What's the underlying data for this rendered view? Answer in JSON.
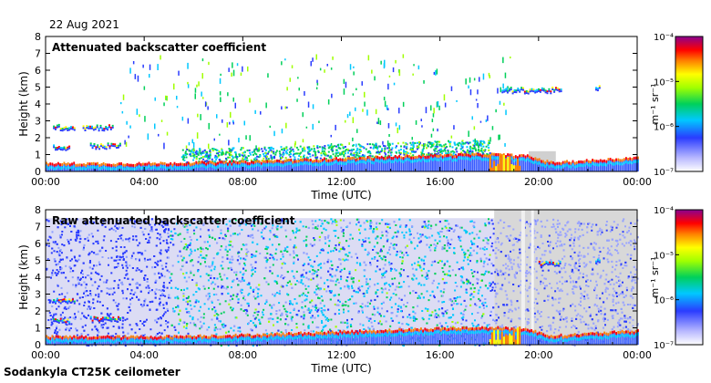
{
  "date": "22 Aug 2021",
  "footer": "Sodankyla CT25K ceilometer",
  "chart_data": [
    {
      "type": "heatmap",
      "title": "Attenuated backscatter coefficient",
      "xlabel": "Time (UTC)",
      "ylabel": "Height (km)",
      "x_ticks": [
        "00:00",
        "04:00",
        "08:00",
        "12:00",
        "16:00",
        "20:00",
        "00:00"
      ],
      "y_ticks": [
        "0",
        "1",
        "2",
        "3",
        "4",
        "5",
        "6",
        "7",
        "8"
      ],
      "xlim_hours": [
        0,
        24
      ],
      "ylim_km": [
        0,
        8
      ],
      "colorbar": {
        "scale": "log",
        "range": [
          1e-07,
          0.0001
        ],
        "tick_labels": [
          "10⁻⁷",
          "10⁻⁶",
          "10⁻⁵",
          "10⁻⁴"
        ],
        "unit": "m⁻¹ sr⁻¹"
      },
      "features": {
        "boundary_layer_top_km": [
          [
            0,
            0.45
          ],
          [
            4,
            0.45
          ],
          [
            8,
            0.55
          ],
          [
            12,
            0.75
          ],
          [
            16,
            0.95
          ],
          [
            18,
            1.0
          ],
          [
            19.5,
            0.9
          ],
          [
            20.5,
            0.5
          ],
          [
            24,
            0.8
          ]
        ],
        "cloud_layers": [
          {
            "t_start": 0.3,
            "t_end": 1.2,
            "height_km": 2.7
          },
          {
            "t_start": 1.5,
            "t_end": 2.7,
            "height_km": 2.7
          },
          {
            "t_start": 0.3,
            "t_end": 1.0,
            "height_km": 1.5
          },
          {
            "t_start": 1.8,
            "t_end": 3.0,
            "height_km": 1.6
          },
          {
            "t_start": 18.5,
            "t_end": 20.9,
            "height_km": 4.9
          },
          {
            "t_start": 22.3,
            "t_end": 22.5,
            "height_km": 5.0
          }
        ]
      }
    },
    {
      "type": "heatmap",
      "title": "Raw attenuated backscatter coefficient",
      "xlabel": "Time (UTC)",
      "ylabel": "Height (km)",
      "x_ticks": [
        "00:00",
        "04:00",
        "08:00",
        "12:00",
        "16:00",
        "20:00",
        "00:00"
      ],
      "y_ticks": [
        "0",
        "1",
        "2",
        "3",
        "4",
        "5",
        "6",
        "7",
        "8"
      ],
      "xlim_hours": [
        0,
        24
      ],
      "ylim_km": [
        0,
        8
      ],
      "colorbar": {
        "scale": "log",
        "range": [
          1e-07,
          0.0001
        ],
        "tick_labels": [
          "10⁻⁷",
          "10⁻⁶",
          "10⁻⁵",
          "10⁻⁴"
        ],
        "unit": "m⁻¹ sr⁻¹"
      },
      "features": {
        "boundary_layer_top_km": [
          [
            0,
            0.45
          ],
          [
            4,
            0.45
          ],
          [
            8,
            0.55
          ],
          [
            12,
            0.75
          ],
          [
            16,
            0.95
          ],
          [
            18,
            1.0
          ],
          [
            19.5,
            0.9
          ],
          [
            20.5,
            0.5
          ],
          [
            24,
            0.8
          ]
        ],
        "cloud_layers": [
          {
            "t_start": 0.3,
            "t_end": 1.2,
            "height_km": 2.7
          },
          {
            "t_start": 0.3,
            "t_end": 1.0,
            "height_km": 1.5
          },
          {
            "t_start": 1.8,
            "t_end": 3.0,
            "height_km": 1.6
          },
          {
            "t_start": 20.0,
            "t_end": 20.9,
            "height_km": 4.9
          },
          {
            "t_start": 22.3,
            "t_end": 22.5,
            "height_km": 5.0
          }
        ]
      }
    }
  ]
}
